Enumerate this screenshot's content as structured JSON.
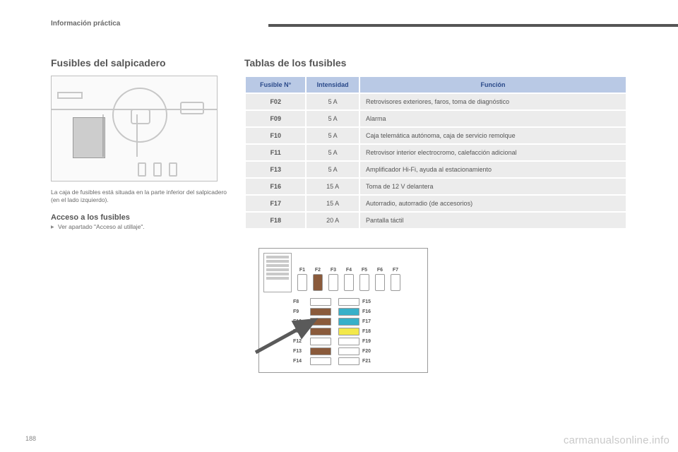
{
  "chapter": "Información práctica",
  "page_number": "188",
  "watermark": "carmanualsonline.info",
  "left": {
    "title": "Fusibles del salpicadero",
    "caption": "La caja de fusibles está situada en la parte inferior del salpicadero (en el lado izquierdo).",
    "subheading": "Acceso a los fusibles",
    "bullet": "Ver apartado \"Acceso al utillaje\"."
  },
  "table": {
    "title": "Tablas de los fusibles",
    "headers": {
      "fuse": "Fusible N°",
      "amp": "Intensidad",
      "func": "Función"
    },
    "col_widths": [
      "16%",
      "14%",
      "70%"
    ],
    "header_bg": "#b9c9e5",
    "header_color": "#2b4a8a",
    "row_bg": "#ececec",
    "rows": [
      {
        "n": "F02",
        "a": "5 A",
        "f": "Retrovisores exteriores, faros, toma de diagnóstico"
      },
      {
        "n": "F09",
        "a": "5 A",
        "f": "Alarma"
      },
      {
        "n": "F10",
        "a": "5 A",
        "f": "Caja telemática autónoma, caja de servicio remolque"
      },
      {
        "n": "F11",
        "a": "5 A",
        "f": "Retrovisor interior electrocromo, calefacción adicional"
      },
      {
        "n": "F13",
        "a": "5 A",
        "f": "Amplificador Hi-Fi, ayuda al estacionamiento"
      },
      {
        "n": "F16",
        "a": "15 A",
        "f": "Toma de 12 V delantera"
      },
      {
        "n": "F17",
        "a": "15 A",
        "f": "Autorradio, autorradio (de accesorios)"
      },
      {
        "n": "F18",
        "a": "20 A",
        "f": "Pantalla táctil"
      }
    ]
  },
  "diagram": {
    "top": [
      {
        "label": "F1",
        "color": "#ffffff"
      },
      {
        "label": "F2",
        "color": "#8a5a3b"
      },
      {
        "label": "F3",
        "color": "#ffffff"
      },
      {
        "label": "F4",
        "color": "#ffffff"
      },
      {
        "label": "F5",
        "color": "#ffffff"
      },
      {
        "label": "F6",
        "color": "#ffffff"
      },
      {
        "label": "F7",
        "color": "#ffffff"
      }
    ],
    "left_rows": [
      {
        "label": "F8",
        "color": "#ffffff"
      },
      {
        "label": "F9",
        "color": "#8a5a3b"
      },
      {
        "label": "F10",
        "color": "#8a5a3b"
      },
      {
        "label": "F11",
        "color": "#8a5a3b"
      },
      {
        "label": "F12",
        "color": "#ffffff"
      },
      {
        "label": "F13",
        "color": "#8a5a3b"
      },
      {
        "label": "F14",
        "color": "#ffffff"
      }
    ],
    "right_rows": [
      {
        "label": "F15",
        "color": "#ffffff"
      },
      {
        "label": "F16",
        "color": "#37b0c9"
      },
      {
        "label": "F17",
        "color": "#37b0c9"
      },
      {
        "label": "F18",
        "color": "#f3e84a"
      },
      {
        "label": "F19",
        "color": "#ffffff"
      },
      {
        "label": "F20",
        "color": "#ffffff"
      },
      {
        "label": "F21",
        "color": "#ffffff"
      }
    ],
    "arrow_color": "#5a5a5a"
  }
}
